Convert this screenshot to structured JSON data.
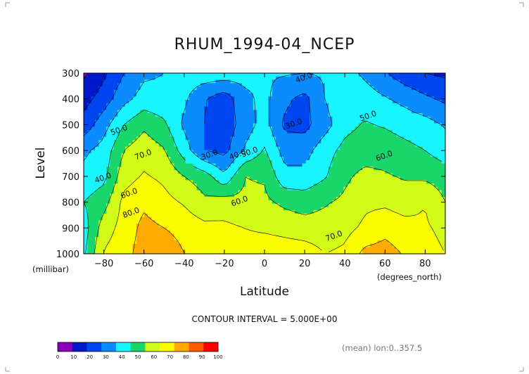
{
  "chart_data": {
    "type": "contour",
    "title": "RHUM_1994-04_NCEP",
    "xlabel": "Latitude",
    "x_unit": "(degrees_north)",
    "ylabel": "Level",
    "y_unit": "(millibar)",
    "xlim": [
      -90,
      90
    ],
    "ylim": [
      1000,
      300
    ],
    "x_ticks": [
      -80,
      -60,
      -40,
      -20,
      0,
      20,
      40,
      60,
      80
    ],
    "y_ticks": [
      300,
      400,
      500,
      600,
      700,
      800,
      900,
      1000
    ],
    "contour_interval_text": "CONTOUR INTERVAL = 5.000E+00",
    "footer_text": "(mean) lon:0..357.5",
    "colorbar": {
      "levels": [
        0,
        10,
        20,
        30,
        40,
        50,
        60,
        70,
        80,
        90,
        100
      ],
      "colors": [
        "#8a00b8",
        "#0019c8",
        "#0046f0",
        "#0a8cff",
        "#19f5ff",
        "#19d66a",
        "#d2fa19",
        "#fcfc00",
        "#ffaa00",
        "#ff5a00",
        "#ff0000"
      ]
    },
    "x": [
      -90,
      -80,
      -70,
      -60,
      -50,
      -40,
      -30,
      -20,
      -10,
      0,
      10,
      20,
      30,
      40,
      50,
      60,
      70,
      80,
      90
    ],
    "y": [
      300,
      400,
      500,
      600,
      700,
      800,
      900,
      1000
    ],
    "z": [
      [
        8,
        18,
        30,
        38,
        40,
        45,
        46,
        46,
        44,
        41,
        41,
        40,
        41,
        44,
        38,
        31,
        24,
        20,
        18
      ],
      [
        16,
        25,
        37,
        44,
        43,
        42,
        31,
        24,
        37,
        43,
        32,
        27,
        40,
        48,
        45,
        41,
        37,
        32,
        28
      ],
      [
        24,
        36,
        50,
        58,
        52,
        38,
        30,
        23,
        35,
        44,
        28,
        27,
        36,
        47,
        51,
        49,
        46,
        44,
        39
      ],
      [
        38,
        44,
        60,
        66,
        61,
        45,
        30,
        27,
        41,
        51,
        36,
        36,
        46,
        53,
        55,
        56,
        53,
        50,
        45
      ],
      [
        43,
        47,
        66,
        71,
        68,
        60,
        55,
        42,
        60,
        59,
        43,
        43,
        49,
        58,
        63,
        61,
        59,
        58,
        55
      ],
      [
        50,
        56,
        73,
        78,
        73,
        69,
        62,
        65,
        62,
        62,
        58,
        56,
        59,
        62,
        68,
        68,
        65,
        70,
        60
      ],
      [
        45,
        65,
        74,
        83,
        80,
        76,
        73,
        72,
        70,
        68,
        66,
        64,
        64,
        67,
        72,
        77,
        74,
        71,
        68
      ],
      [
        48,
        71,
        76,
        85,
        88,
        80,
        76,
        74,
        75,
        78,
        77,
        76,
        70,
        72,
        83,
        84,
        79,
        73,
        70
      ]
    ],
    "contour_labels": [
      {
        "lat": 20,
        "lev": 327,
        "text": "40.0"
      },
      {
        "lat": -72,
        "lev": 530,
        "text": "50.0"
      },
      {
        "lat": -80,
        "lev": 715,
        "text": "40.0"
      },
      {
        "lat": -67,
        "lev": 775,
        "text": "60.0"
      },
      {
        "lat": -60,
        "lev": 625,
        "text": "70.0"
      },
      {
        "lat": -66,
        "lev": 850,
        "text": "80.0"
      },
      {
        "lat": -27,
        "lev": 625,
        "text": "30.0"
      },
      {
        "lat": -13,
        "lev": 625,
        "text": "40.0"
      },
      {
        "lat": -7,
        "lev": 615,
        "text": "50.0"
      },
      {
        "lat": -12,
        "lev": 805,
        "text": "60.0"
      },
      {
        "lat": 15,
        "lev": 505,
        "text": "30.0"
      },
      {
        "lat": 52,
        "lev": 475,
        "text": "50.0"
      },
      {
        "lat": 60,
        "lev": 630,
        "text": "60.0"
      },
      {
        "lat": 35,
        "lev": 940,
        "text": "70.0"
      }
    ]
  }
}
